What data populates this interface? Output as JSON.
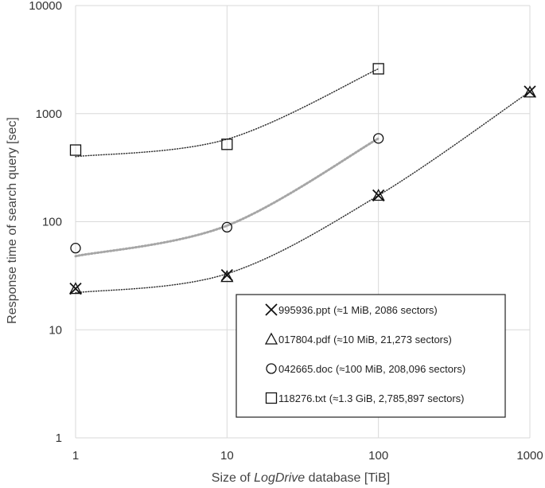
{
  "chart_data": {
    "type": "scatter",
    "title": "",
    "xlabel_parts": [
      "Size of ",
      "LogDrive",
      " database [TiB]"
    ],
    "ylabel": "Response time of search query [sec]",
    "x_scale": "log",
    "y_scale": "log",
    "xlim": [
      1,
      1000
    ],
    "ylim": [
      1,
      10000
    ],
    "x_ticks": [
      "1",
      "10",
      "100",
      "1000"
    ],
    "y_ticks": [
      "1",
      "10",
      "100",
      "1000",
      "10000"
    ],
    "grid": true,
    "legend_position": "lower-right",
    "series": [
      {
        "name": "995936.ppt",
        "detail": "(≈1 MiB, 2086 sectors)",
        "marker": "x",
        "x": [
          1,
          10,
          100,
          1000
        ],
        "y": [
          24,
          32,
          175,
          1600
        ],
        "trend": [
          [
            1,
            22
          ],
          [
            10,
            33
          ],
          [
            100,
            175
          ],
          [
            1000,
            1600
          ]
        ],
        "trend_color": "#333333"
      },
      {
        "name": "017804.pdf",
        "detail": "(≈10 MiB,  21,273 sectors)",
        "marker": "triangle",
        "x": [
          1,
          10,
          100,
          1000
        ],
        "y": [
          24,
          31,
          175,
          1580
        ],
        "trend": null,
        "trend_color": null
      },
      {
        "name": "042665.doc",
        "detail": "(≈100 MiB, 208,096 sectors)",
        "marker": "circle",
        "x": [
          1,
          10,
          100
        ],
        "y": [
          57,
          89,
          590
        ],
        "trend": [
          [
            1,
            48
          ],
          [
            10,
            92
          ],
          [
            100,
            590
          ]
        ],
        "trend_color": "#a6a6a6"
      },
      {
        "name": "118276.txt",
        "detail": "(≈1.3 GiB, 2,785,897 sectors)",
        "marker": "square",
        "x": [
          1,
          10,
          100
        ],
        "y": [
          460,
          520,
          2600
        ],
        "trend": [
          [
            1,
            400
          ],
          [
            10,
            580
          ],
          [
            100,
            2600
          ]
        ],
        "trend_color": "#333333"
      }
    ]
  }
}
